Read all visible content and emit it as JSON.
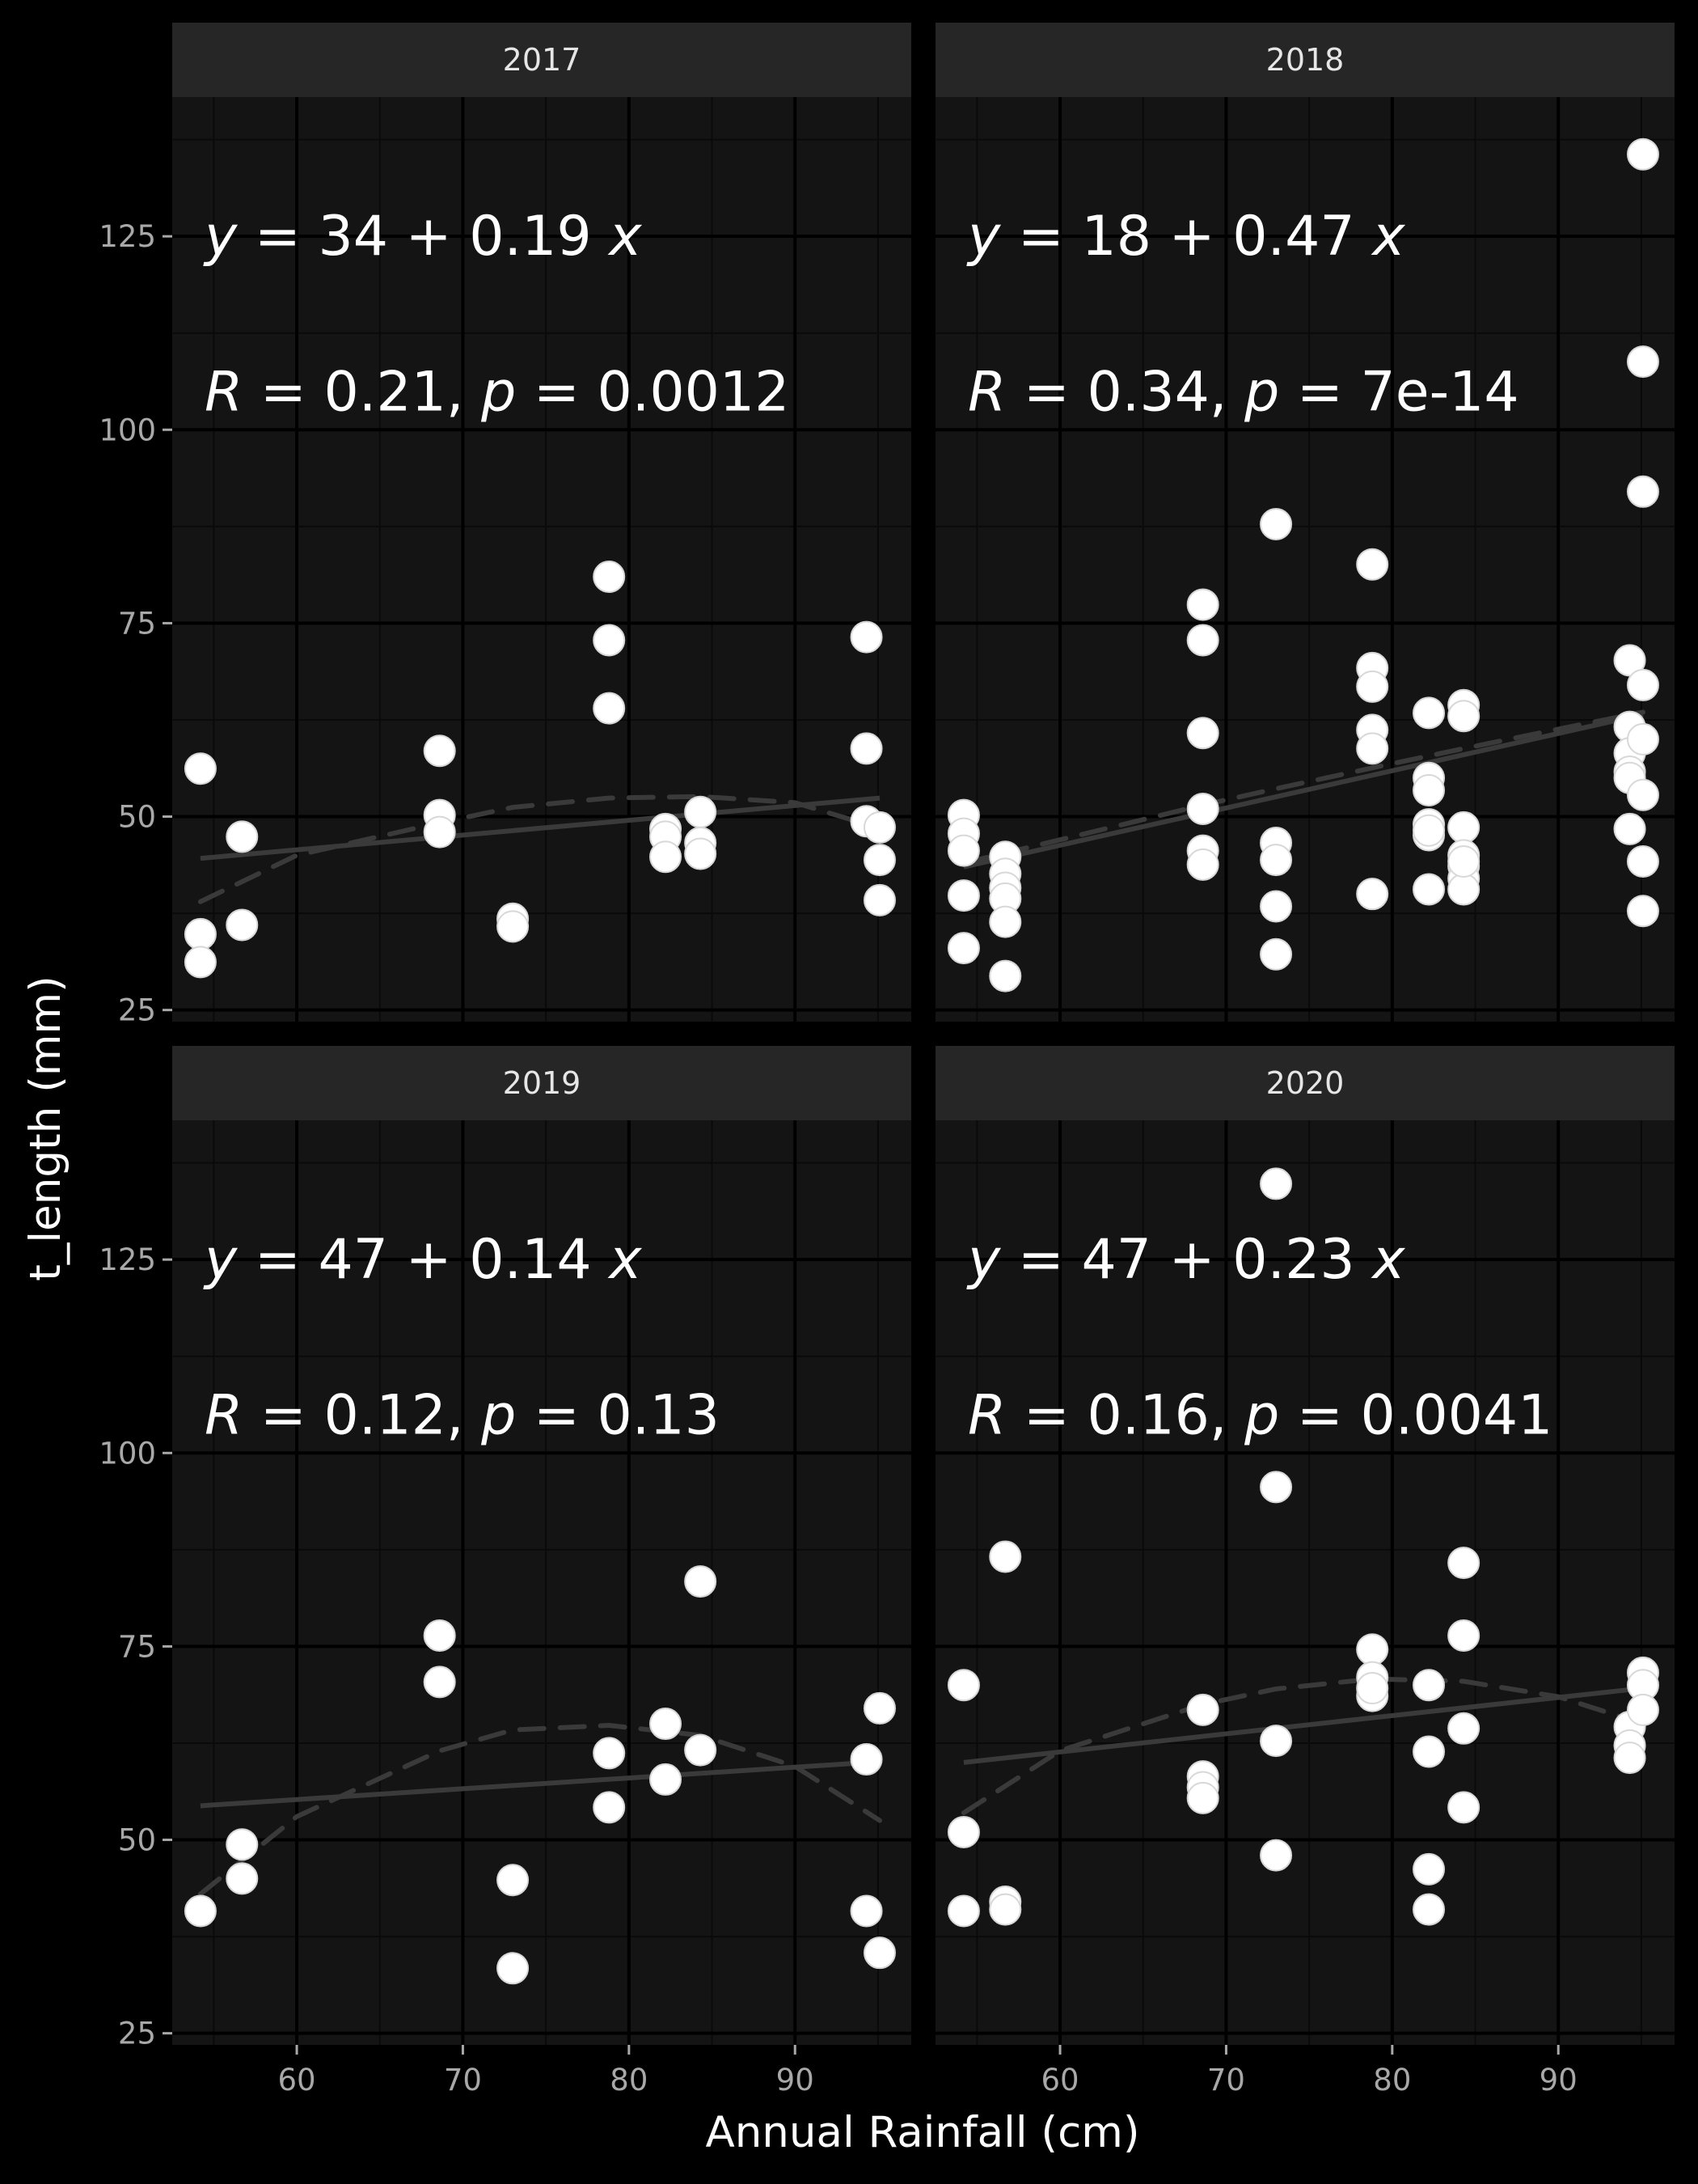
{
  "chart_data": {
    "type": "scatter",
    "facet": "year",
    "xlabel": "Annual Rainfall (cm)",
    "ylabel": "t_length (mm)",
    "xlim": [
      52.5,
      97.0
    ],
    "ylim": [
      23.5,
      143.0
    ],
    "xticks": [
      60,
      70,
      80,
      90
    ],
    "yticks": [
      25,
      50,
      75,
      100,
      125
    ],
    "grid": true,
    "legend": "none",
    "colors": {
      "background": "#000000",
      "panel": "#141414",
      "strip": "#262626",
      "grid_major": "#000000",
      "grid_minor": "#0a0a0a",
      "point": "#ffffff",
      "point_stroke": "#d8d8d8",
      "fit_line": "#3a3a3a",
      "smooth_line": "#3a3a3a"
    },
    "panels": [
      {
        "label": "2017",
        "annotation": {
          "equation": "y = 34 + 0.19 x",
          "eq_intercept": "34",
          "eq_slope": "0.19",
          "r": "0.21",
          "p": "0.0012"
        },
        "fit": {
          "x": [
            54.2,
            95.1
          ],
          "y": [
            44.6,
            52.4
          ]
        },
        "smooth": {
          "x": [
            54.2,
            60,
            68.6,
            73,
            78.8,
            84.3,
            90,
            95.1
          ],
          "y": [
            39,
            45,
            49.2,
            51.2,
            52.4,
            52.6,
            51.8,
            48.5
          ]
        },
        "points": {
          "x": [
            54.2,
            54.2,
            54.2,
            56.7,
            56.7,
            68.6,
            68.6,
            68.6,
            73,
            73,
            78.8,
            78.8,
            78.8,
            82.2,
            82.2,
            82.2,
            84.3,
            84.3,
            84.3,
            94.3,
            94.3,
            94.3,
            95.1,
            95.1,
            95.1
          ],
          "y": [
            56.2,
            34.8,
            31.2,
            47.4,
            36,
            58.5,
            50.2,
            48,
            36.8,
            35.8,
            81,
            72.8,
            64,
            48.4,
            47.4,
            44.8,
            50.6,
            46.6,
            45.2,
            73.2,
            58.8,
            49.4,
            48.6,
            44.4,
            39.2
          ]
        }
      },
      {
        "label": "2018",
        "annotation": {
          "equation": "y = 18 + 0.47 x",
          "eq_intercept": "18",
          "eq_slope": "0.47",
          "r": "0.34",
          "p": "7e-14"
        },
        "fit": {
          "x": [
            54.2,
            95.1
          ],
          "y": [
            43.5,
            63.2
          ]
        },
        "smooth": {
          "x": [
            54.2,
            60,
            68.6,
            73,
            78.8,
            84.3,
            90,
            95.1
          ],
          "y": [
            44,
            47,
            51.5,
            53.6,
            56.3,
            58.8,
            61.3,
            63.5
          ]
        },
        "points": {
          "x": [
            54.2,
            54.2,
            54.2,
            54.2,
            54.2,
            56.7,
            56.7,
            56.7,
            56.7,
            56.7,
            56.7,
            68.6,
            68.6,
            68.6,
            68.6,
            68.6,
            68.6,
            73,
            73,
            73,
            73,
            73,
            78.8,
            78.8,
            78.8,
            78.8,
            78.8,
            78.8,
            82.2,
            82.2,
            82.2,
            82.2,
            82.2,
            82.2,
            82.2,
            84.3,
            84.3,
            84.3,
            84.3,
            84.3,
            84.3,
            84.3,
            84.3,
            94.3,
            94.3,
            94.3,
            94.3,
            94.3,
            94.3,
            95.1,
            95.1,
            95.1,
            95.1,
            95.1,
            95.1,
            95.1,
            95.1
          ],
          "y": [
            50.2,
            47.8,
            45.6,
            39.8,
            33,
            44.8,
            42.6,
            40.8,
            39.4,
            36.4,
            29.4,
            77.4,
            72.8,
            60.8,
            51,
            45.6,
            43.8,
            87.8,
            46.6,
            44.4,
            38.4,
            32.2,
            82.6,
            69.2,
            66.8,
            61.2,
            58.8,
            40,
            63.4,
            55,
            53.4,
            49,
            47.6,
            40.6,
            48.2,
            64.4,
            63,
            48.6,
            45,
            43.6,
            42,
            40.6,
            44.2,
            70.2,
            61.6,
            58.2,
            55.8,
            55,
            48.4,
            135.6,
            108.8,
            92,
            67,
            60,
            52.8,
            44.2,
            37.8
          ]
        }
      },
      {
        "label": "2019",
        "annotation": {
          "equation": "y = 47 + 0.14 x",
          "eq_intercept": "47",
          "eq_slope": "0.14",
          "r": "0.12",
          "p": "0.13"
        },
        "fit": {
          "x": [
            54.2,
            95.1
          ],
          "y": [
            54.4,
            60.1
          ]
        },
        "smooth": {
          "x": [
            54.2,
            60,
            68.6,
            73,
            78.8,
            84.3,
            90,
            95.1
          ],
          "y": [
            43,
            53,
            61.5,
            64.2,
            64.8,
            63.5,
            59.5,
            52.5
          ]
        },
        "points": {
          "x": [
            54.2,
            56.7,
            56.7,
            68.6,
            68.6,
            73,
            73,
            78.8,
            78.8,
            82.2,
            82.2,
            84.3,
            84.3,
            94.3,
            94.3,
            95.1,
            95.1
          ],
          "y": [
            40.8,
            49.4,
            45,
            76.4,
            70.4,
            44.8,
            33.4,
            61.2,
            54.2,
            65,
            57.8,
            83.4,
            61.6,
            60.4,
            40.8,
            67,
            35.4
          ]
        }
      },
      {
        "label": "2020",
        "annotation": {
          "equation": "y = 47 + 0.23 x",
          "eq_intercept": "47",
          "eq_slope": "0.23",
          "r": "0.16",
          "p": "0.0041"
        },
        "fit": {
          "x": [
            54.2,
            95.1
          ],
          "y": [
            60,
            69.6
          ]
        },
        "smooth": {
          "x": [
            54.2,
            60,
            68.6,
            73,
            78.8,
            84.3,
            90,
            95.1
          ],
          "y": [
            53.5,
            61.5,
            67.5,
            69.5,
            70.8,
            70.5,
            68.5,
            65
          ]
        },
        "points": {
          "x": [
            54.2,
            54.2,
            54.2,
            56.7,
            56.7,
            56.7,
            68.6,
            68.6,
            68.6,
            68.6,
            73,
            73,
            73,
            73,
            78.8,
            78.8,
            78.8,
            78.8,
            82.2,
            82.2,
            82.2,
            82.2,
            84.3,
            84.3,
            84.3,
            84.3,
            94.3,
            94.3,
            94.3,
            95.1,
            95.1,
            95.1
          ],
          "y": [
            70,
            51,
            40.8,
            86.6,
            42,
            41,
            66.8,
            58.2,
            56.8,
            55.4,
            134.8,
            95.6,
            62.8,
            48,
            74.6,
            71,
            68.6,
            69.6,
            70,
            61.4,
            46.2,
            41,
            85.8,
            76.4,
            64.4,
            54.2,
            64.6,
            62.2,
            60.6,
            71.6,
            70,
            66.8
          ]
        }
      }
    ]
  }
}
